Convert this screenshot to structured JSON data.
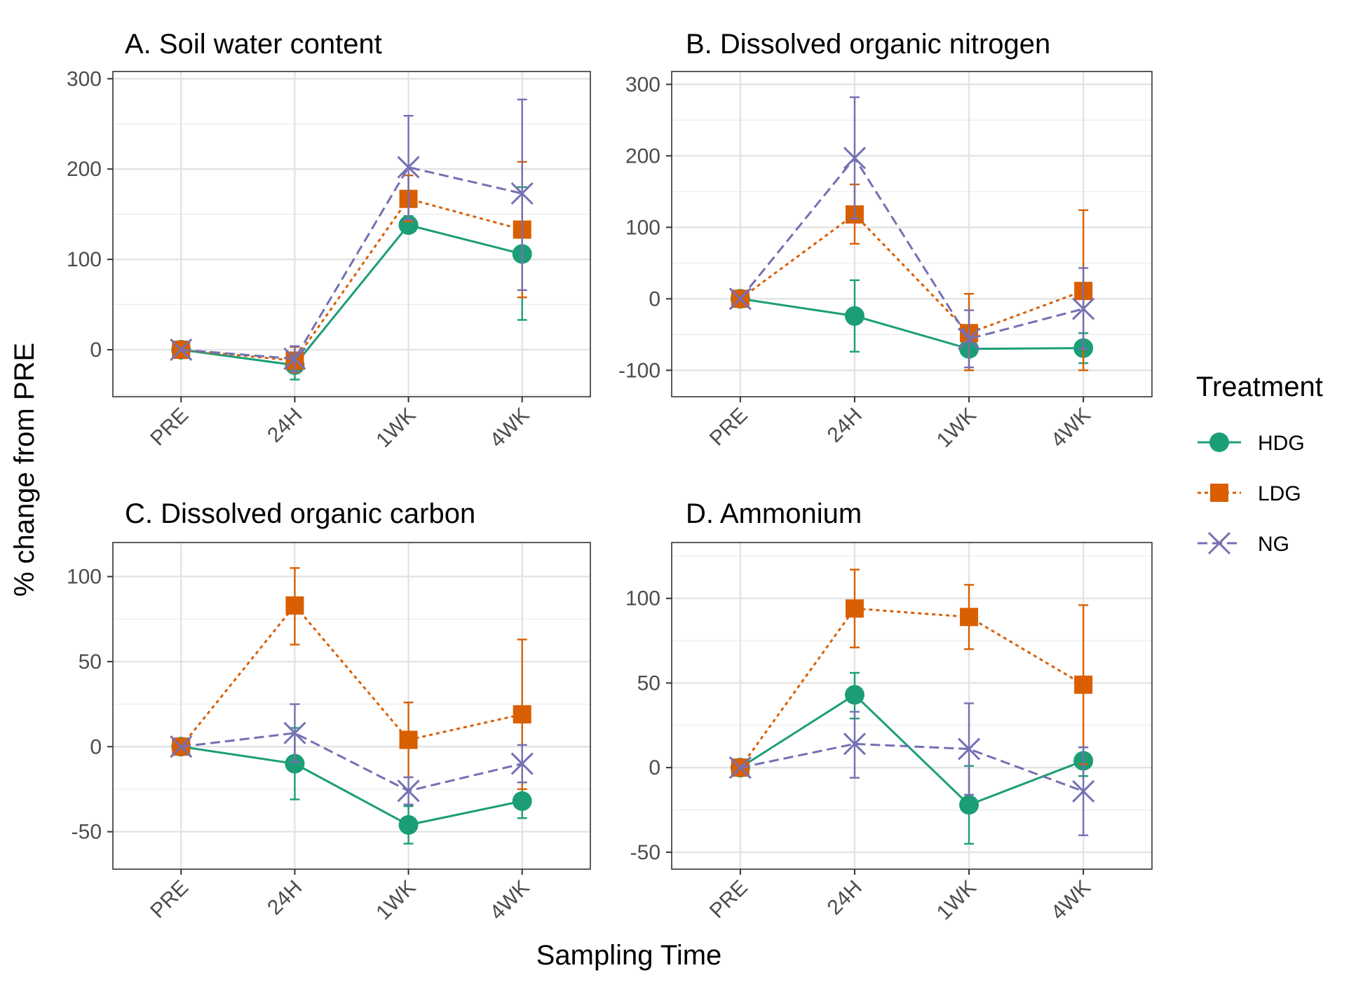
{
  "colors": {
    "HDG": "#1b9e77",
    "LDG": "#d95f02",
    "NG": "#7570b3"
  },
  "xlabel": "Sampling Time",
  "ylabel": "% change from PRE",
  "legend": {
    "title": "Treatment",
    "position": "right",
    "entries": [
      {
        "name": "HDG",
        "marker": "circle",
        "line": "solid"
      },
      {
        "name": "LDG",
        "marker": "square",
        "line": "dotted"
      },
      {
        "name": "NG",
        "marker": "x",
        "line": "dashed"
      }
    ]
  },
  "chart_data": [
    {
      "type": "line",
      "title": "A. Soil water content",
      "categories": [
        "PRE",
        "24H",
        "1WK",
        "4WK"
      ],
      "ylim": [
        -52,
        308
      ],
      "yticks": [
        0,
        100,
        200,
        300
      ],
      "grid": true,
      "series": [
        {
          "name": "HDG",
          "values": [
            0,
            -17,
            138,
            106
          ],
          "lower": [
            0,
            -33,
            130,
            33
          ],
          "upper": [
            0,
            -3,
            148,
            180
          ]
        },
        {
          "name": "LDG",
          "values": [
            0,
            -12,
            167,
            133
          ],
          "lower": [
            0,
            -25,
            142,
            58
          ],
          "upper": [
            0,
            3,
            193,
            208
          ]
        },
        {
          "name": "NG",
          "values": [
            0,
            -10,
            202,
            173
          ],
          "lower": [
            0,
            -24,
            144,
            66
          ],
          "upper": [
            0,
            4,
            259,
            277
          ]
        }
      ]
    },
    {
      "type": "line",
      "title": "B. Dissolved organic nitrogen",
      "categories": [
        "PRE",
        "24H",
        "1WK",
        "4WK"
      ],
      "ylim": [
        -137,
        318
      ],
      "yticks": [
        -100,
        0,
        100,
        200,
        300
      ],
      "grid": true,
      "series": [
        {
          "name": "HDG",
          "values": [
            0,
            -24,
            -70,
            -69
          ],
          "lower": [
            0,
            -74,
            -100,
            -90
          ],
          "upper": [
            0,
            26,
            -40,
            -48
          ]
        },
        {
          "name": "LDG",
          "values": [
            0,
            118,
            -48,
            11
          ],
          "lower": [
            0,
            77,
            -100,
            -100
          ],
          "upper": [
            0,
            160,
            7,
            124
          ]
        },
        {
          "name": "NG",
          "values": [
            0,
            197,
            -56,
            -14
          ],
          "lower": [
            0,
            112,
            -96,
            -70
          ],
          "upper": [
            0,
            282,
            -16,
            43
          ]
        }
      ]
    },
    {
      "type": "line",
      "title": "C. Dissolved organic carbon",
      "categories": [
        "PRE",
        "24H",
        "1WK",
        "4WK"
      ],
      "ylim": [
        -72,
        120
      ],
      "yticks": [
        -50,
        0,
        50,
        100
      ],
      "grid": true,
      "series": [
        {
          "name": "HDG",
          "values": [
            0,
            -10,
            -46,
            -32
          ],
          "lower": [
            0,
            -31,
            -57,
            -42
          ],
          "upper": [
            0,
            11,
            -35,
            -21
          ]
        },
        {
          "name": "LDG",
          "values": [
            0,
            83,
            4,
            19
          ],
          "lower": [
            0,
            60,
            -18,
            -25
          ],
          "upper": [
            0,
            105,
            26,
            63
          ]
        },
        {
          "name": "NG",
          "values": [
            0,
            8,
            -26,
            -10
          ],
          "lower": [
            0,
            -9,
            -34,
            -21
          ],
          "upper": [
            0,
            25,
            -18,
            1
          ]
        }
      ]
    },
    {
      "type": "line",
      "title": "D. Ammonium",
      "categories": [
        "PRE",
        "24H",
        "1WK",
        "4WK"
      ],
      "ylim": [
        -60,
        133
      ],
      "yticks": [
        -50,
        0,
        50,
        100
      ],
      "grid": true,
      "series": [
        {
          "name": "HDG",
          "values": [
            0,
            43,
            -22,
            4
          ],
          "lower": [
            0,
            29,
            -45,
            -5
          ],
          "upper": [
            0,
            56,
            1,
            12
          ]
        },
        {
          "name": "LDG",
          "values": [
            0,
            94,
            89,
            49
          ],
          "lower": [
            0,
            71,
            70,
            2
          ],
          "upper": [
            0,
            117,
            108,
            96
          ]
        },
        {
          "name": "NG",
          "values": [
            0,
            14,
            11,
            -14
          ],
          "lower": [
            0,
            -6,
            -16,
            -40
          ],
          "upper": [
            0,
            33,
            38,
            12
          ]
        }
      ]
    }
  ]
}
